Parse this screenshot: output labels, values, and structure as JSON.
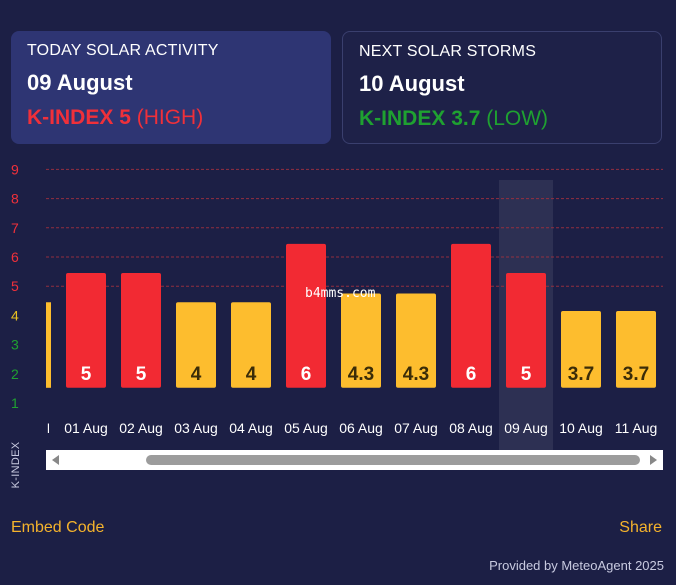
{
  "today": {
    "label": "TODAY SOLAR ACTIVITY",
    "date": "09 August",
    "k_prefix": "K-INDEX ",
    "k_value": "5",
    "k_level": "(HIGH)"
  },
  "next": {
    "label": "NEXT SOLAR STORMS",
    "date": "10 August",
    "k_prefix": "K-INDEX ",
    "k_value": "3.7",
    "k_level": "(LOW)"
  },
  "colors": {
    "high": "#f22a33",
    "moderate": "#fdbd2e",
    "background": "#1c1f45",
    "accent": "#f5b32c"
  },
  "chart_data": {
    "type": "bar",
    "ylabel": "K-INDEX",
    "ylim": [
      1,
      9
    ],
    "yticks": [
      {
        "value": 1,
        "label": "1",
        "color": "#1fa131"
      },
      {
        "value": 2,
        "label": "2",
        "color": "#1fa131"
      },
      {
        "value": 3,
        "label": "3",
        "color": "#1fa131"
      },
      {
        "value": 4,
        "label": "4",
        "color": "#e8c021"
      },
      {
        "value": 5,
        "label": "5",
        "color": "#f0303a"
      },
      {
        "value": 6,
        "label": "6",
        "color": "#f0303a"
      },
      {
        "value": 7,
        "label": "7",
        "color": "#f0303a"
      },
      {
        "value": 8,
        "label": "8",
        "color": "#f0303a"
      },
      {
        "value": 9,
        "label": "9",
        "color": "#f0303a"
      }
    ],
    "grid_from": 5,
    "partial_left": {
      "label": "l",
      "value": 4
    },
    "categories": [
      "01 Aug",
      "02 Aug",
      "03 Aug",
      "04 Aug",
      "05 Aug",
      "06 Aug",
      "07 Aug",
      "08 Aug",
      "09 Aug",
      "10 Aug",
      "11 Aug"
    ],
    "values": [
      5,
      5,
      4,
      4,
      6,
      4.3,
      4.3,
      6,
      5,
      3.7,
      3.7
    ],
    "labels": [
      "5",
      "5",
      "4",
      "4",
      "6",
      "4.3",
      "4.3",
      "6",
      "5",
      "3.7",
      "3.7"
    ],
    "highlight": "09 Aug"
  },
  "ylabel": "K-INDEX",
  "footer": {
    "embed": "Embed Code",
    "share": "Share",
    "provided": "Provided by MeteoAgent 2025"
  },
  "watermark": "b4mms.com"
}
